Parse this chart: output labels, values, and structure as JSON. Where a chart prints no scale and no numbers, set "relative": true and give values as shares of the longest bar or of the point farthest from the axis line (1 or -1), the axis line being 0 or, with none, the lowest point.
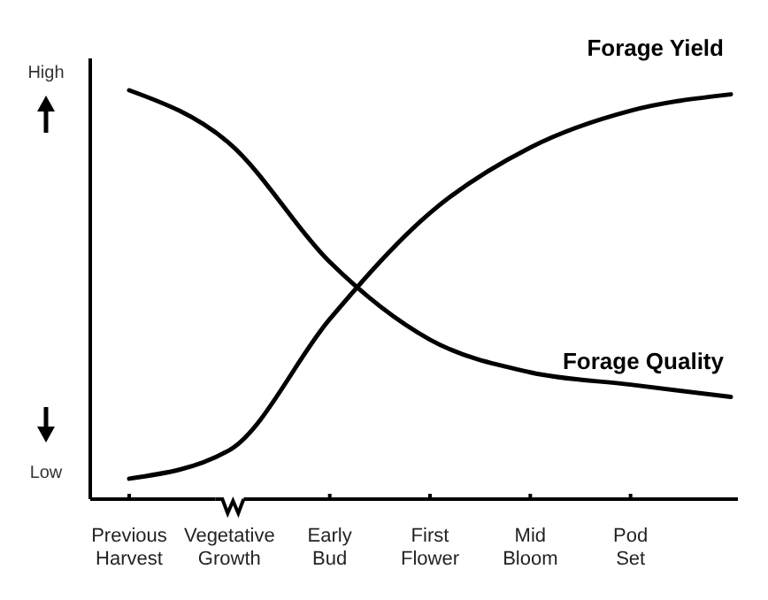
{
  "chart_data": {
    "type": "line",
    "relative": true,
    "categories": [
      "Previous Harvest",
      "Vegetative Growth",
      "Early Bud",
      "First Flower",
      "Mid Bloom",
      "Pod Set",
      null
    ],
    "series": [
      {
        "name": "Forage Yield",
        "color": "#000000",
        "values": [
          0.05,
          0.12,
          0.44,
          0.7,
          0.86,
          0.95,
          0.99
        ]
      },
      {
        "name": "Forage Quality",
        "color": "#000000",
        "values": [
          1,
          0.87,
          0.58,
          0.39,
          0.31,
          0.28,
          0.25
        ]
      }
    ],
    "annotations": [
      "High",
      "Low"
    ],
    "grid": false,
    "marker": "none",
    "line_style": "solid"
  }
}
